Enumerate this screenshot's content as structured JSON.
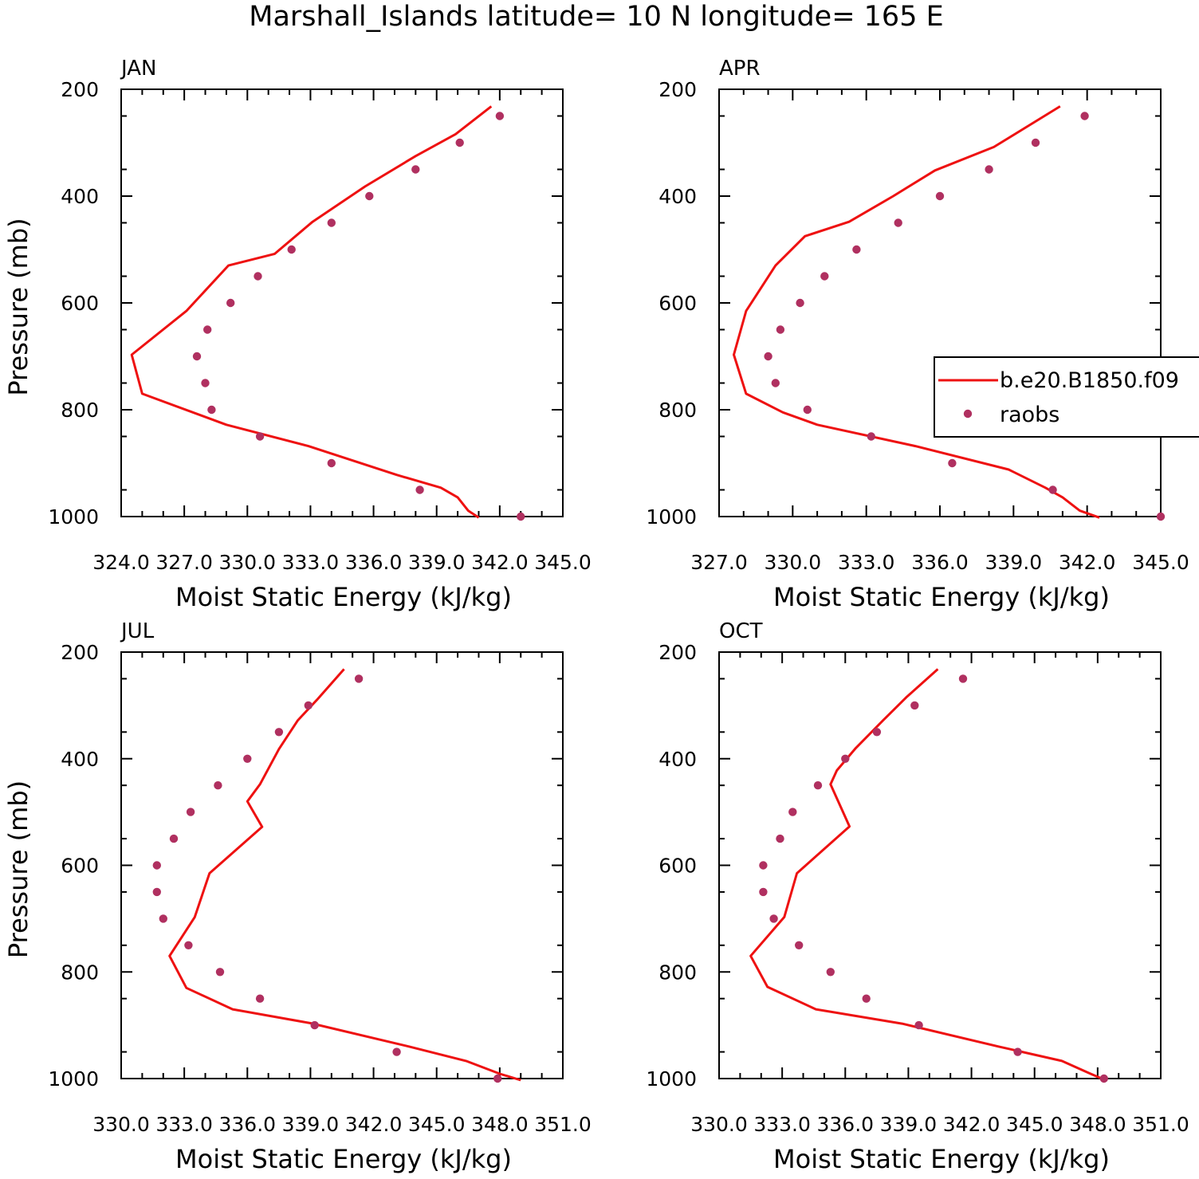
{
  "title": "Marshall_Islands  latitude= 10 N longitude= 165 E",
  "legend": {
    "placement": "right of APR panel",
    "model_label": "b.e20.B1850.f09",
    "obs_label": "raobs"
  },
  "colors": {
    "model": "#ee1111",
    "obs": "#b03060"
  },
  "chart_data": [
    {
      "type": "line",
      "panel": "JAN",
      "xlabel": "Moist Static Energy (kJ/kg)",
      "ylabel": "Pressure (mb)",
      "xlim": [
        324,
        345
      ],
      "ylim": [
        1000,
        200
      ],
      "xticks": [
        324,
        327,
        330,
        333,
        336,
        339,
        342,
        345
      ],
      "xtick_labels": [
        "324.0",
        "327.0",
        "330.0",
        "333.0",
        "336.0",
        "339.0",
        "342.0",
        "345.0"
      ],
      "yticks": [
        200,
        400,
        600,
        800,
        1000
      ],
      "ytick_labels": [
        "200",
        "400",
        "600",
        "800",
        "1000"
      ],
      "series": [
        {
          "name": "b.e20.B1850.f09",
          "style": "line",
          "x": [
            341.6,
            339.9,
            338.0,
            335.6,
            333.1,
            331.3,
            329.1,
            327.1,
            324.5,
            325.0,
            329.0,
            332.9,
            337.1,
            339.2,
            340.0,
            340.5,
            341.0
          ],
          "y": [
            232,
            284,
            325,
            382,
            448,
            508,
            530,
            615,
            697,
            770,
            828,
            868,
            922,
            946,
            964,
            989,
            1002
          ]
        },
        {
          "name": "raobs",
          "style": "marker",
          "x": [
            342.0,
            340.1,
            338.0,
            335.8,
            334.0,
            332.1,
            330.5,
            329.2,
            328.1,
            327.6,
            328.0,
            328.3,
            330.6,
            334.0,
            338.2,
            343.0
          ],
          "y": [
            250,
            300,
            350,
            400,
            450,
            500,
            550,
            600,
            650,
            700,
            750,
            800,
            850,
            900,
            950,
            1000
          ]
        }
      ]
    },
    {
      "type": "line",
      "panel": "APR",
      "xlabel": "Moist Static Energy (kJ/kg)",
      "ylabel": "",
      "xlim": [
        327,
        345
      ],
      "ylim": [
        1000,
        200
      ],
      "xticks": [
        327,
        330,
        333,
        336,
        339,
        342,
        345
      ],
      "xtick_labels": [
        "327.0",
        "330.0",
        "333.0",
        "336.0",
        "339.0",
        "342.0",
        "345.0"
      ],
      "yticks": [
        200,
        400,
        600,
        800,
        1000
      ],
      "ytick_labels": [
        "200",
        "400",
        "600",
        "800",
        "1000"
      ],
      "series": [
        {
          "name": "b.e20.B1850.f09",
          "style": "line",
          "x": [
            340.9,
            338.2,
            335.8,
            334.1,
            332.3,
            330.5,
            329.3,
            328.1,
            327.6,
            328.1,
            329.6,
            331.0,
            335.0,
            338.8,
            340.3,
            341.0,
            341.7,
            342.5
          ],
          "y": [
            232,
            308,
            352,
            400,
            448,
            475,
            530,
            615,
            697,
            770,
            805,
            828,
            868,
            912,
            946,
            964,
            989,
            1002
          ]
        },
        {
          "name": "raobs",
          "style": "marker",
          "x": [
            341.9,
            339.9,
            338.0,
            336.0,
            334.3,
            332.6,
            331.3,
            330.3,
            329.5,
            329.0,
            329.3,
            330.6,
            333.2,
            336.5,
            340.6,
            345.0
          ],
          "y": [
            250,
            300,
            350,
            400,
            450,
            500,
            550,
            600,
            650,
            700,
            750,
            800,
            850,
            900,
            950,
            1000
          ]
        }
      ]
    },
    {
      "type": "line",
      "panel": "JUL",
      "xlabel": "Moist Static Energy (kJ/kg)",
      "ylabel": "Pressure (mb)",
      "xlim": [
        330,
        351
      ],
      "ylim": [
        1000,
        200
      ],
      "xticks": [
        330,
        333,
        336,
        339,
        342,
        345,
        348,
        351
      ],
      "xtick_labels": [
        "330.0",
        "333.0",
        "336.0",
        "339.0",
        "342.0",
        "345.0",
        "348.0",
        "351.0"
      ],
      "yticks": [
        200,
        400,
        600,
        800,
        1000
      ],
      "ytick_labels": [
        "200",
        "400",
        "600",
        "800",
        "1000"
      ],
      "series": [
        {
          "name": "b.e20.B1850.f09",
          "style": "line",
          "x": [
            340.6,
            339.3,
            338.4,
            337.5,
            336.6,
            336.0,
            336.7,
            334.2,
            333.5,
            332.3,
            333.1,
            335.3,
            339.0,
            343.7,
            346.4,
            348.0,
            349.0
          ],
          "y": [
            232,
            290,
            328,
            382,
            448,
            480,
            528,
            615,
            697,
            770,
            830,
            870,
            896,
            940,
            967,
            991,
            1003
          ]
        },
        {
          "name": "raobs",
          "style": "marker",
          "x": [
            341.3,
            338.9,
            337.5,
            336.0,
            334.6,
            333.3,
            332.5,
            331.7,
            331.7,
            332.0,
            333.2,
            334.7,
            336.6,
            339.2,
            343.1,
            347.9
          ],
          "y": [
            250,
            300,
            350,
            400,
            450,
            500,
            550,
            600,
            650,
            700,
            750,
            800,
            850,
            900,
            950,
            1000
          ]
        }
      ]
    },
    {
      "type": "line",
      "panel": "OCT",
      "xlabel": "Moist Static Energy (kJ/kg)",
      "ylabel": "",
      "xlim": [
        330,
        351
      ],
      "ylim": [
        1000,
        200
      ],
      "xticks": [
        330,
        333,
        336,
        339,
        342,
        345,
        348,
        351
      ],
      "xtick_labels": [
        "330.0",
        "333.0",
        "336.0",
        "339.0",
        "342.0",
        "345.0",
        "348.0",
        "351.0"
      ],
      "yticks": [
        200,
        400,
        600,
        800,
        1000
      ],
      "ytick_labels": [
        "200",
        "400",
        "600",
        "800",
        "1000"
      ],
      "series": [
        {
          "name": "b.e20.B1850.f09",
          "style": "line",
          "x": [
            340.4,
            338.9,
            337.8,
            336.5,
            335.6,
            335.3,
            336.2,
            333.7,
            333.1,
            331.5,
            332.3,
            334.6,
            338.7,
            343.3,
            346.3,
            347.6,
            348.3
          ],
          "y": [
            232,
            285,
            328,
            380,
            422,
            448,
            527,
            615,
            697,
            770,
            828,
            870,
            897,
            940,
            967,
            990,
            1002
          ]
        },
        {
          "name": "raobs",
          "style": "marker",
          "x": [
            341.6,
            339.3,
            337.5,
            336.0,
            334.7,
            333.5,
            332.9,
            332.1,
            332.1,
            332.6,
            333.8,
            335.3,
            337.0,
            339.5,
            344.2,
            348.3
          ],
          "y": [
            250,
            300,
            350,
            400,
            450,
            500,
            550,
            600,
            650,
            700,
            750,
            800,
            850,
            900,
            950,
            1000
          ]
        }
      ]
    }
  ]
}
